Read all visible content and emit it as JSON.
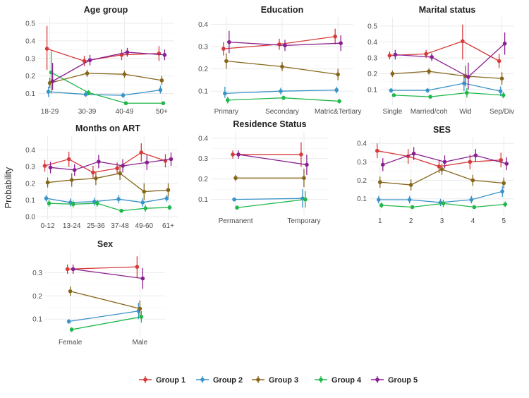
{
  "chart_data": {
    "type": "line",
    "y_axis_label": "Probability",
    "series_names": [
      "Group 1",
      "Group 2",
      "Group 3",
      "Group 4",
      "Group 5"
    ],
    "colors": [
      "#d63a3a",
      "#3a93c9",
      "#86661a",
      "#1fb84a",
      "#8a1f8f"
    ],
    "legend_position": "bottom",
    "panels": [
      {
        "title": "Age group",
        "categories": [
          "18-29",
          "30-39",
          "40-49",
          "50+"
        ],
        "ylim": [
          0.05,
          0.52
        ],
        "yticks": [
          0.1,
          0.2,
          0.3,
          0.4,
          0.5
        ],
        "ytick_labels": [
          "0.1",
          "0.2",
          "0.3",
          "0.4",
          "0.5"
        ],
        "series": [
          {
            "name": "Group 1",
            "values": [
              0.355,
              0.285,
              0.32,
              0.328
            ],
            "lower": [
              0.235,
              0.255,
              0.29,
              0.285
            ],
            "upper": [
              0.485,
              0.315,
              0.35,
              0.37
            ]
          },
          {
            "name": "Group 2",
            "values": [
              0.11,
              0.095,
              0.09,
              0.12
            ],
            "lower": [
              0.08,
              0.08,
              0.075,
              0.1
            ],
            "upper": [
              0.14,
              0.115,
              0.105,
              0.145
            ]
          },
          {
            "name": "Group 3",
            "values": [
              0.16,
              0.215,
              0.21,
              0.175
            ],
            "lower": [
              0.13,
              0.195,
              0.19,
              0.15
            ],
            "upper": [
              0.19,
              0.235,
              0.23,
              0.2
            ]
          },
          {
            "name": "Group 4",
            "values": [
              0.22,
              0.105,
              0.045,
              0.045
            ],
            "lower": [
              0.1,
              0.09,
              0.035,
              0.035
            ],
            "upper": [
              0.34,
              0.12,
              0.055,
              0.055
            ]
          },
          {
            "name": "Group 5",
            "values": [
              0.17,
              0.29,
              0.335,
              0.32
            ],
            "lower": [
              0.12,
              0.26,
              0.31,
              0.29
            ],
            "upper": [
              0.275,
              0.32,
              0.36,
              0.35
            ]
          }
        ]
      },
      {
        "title": "Education",
        "categories": [
          "Primary",
          "Secondary",
          "Matric&Tertiary"
        ],
        "ylim": [
          0.05,
          0.42
        ],
        "yticks": [
          0.1,
          0.2,
          0.3,
          0.4
        ],
        "ytick_labels": [
          "0.1",
          "0.2",
          "0.3",
          "0.4"
        ],
        "series": [
          {
            "name": "Group 1",
            "values": [
              0.29,
              0.31,
              0.345
            ],
            "lower": [
              0.26,
              0.285,
              0.31
            ],
            "upper": [
              0.32,
              0.335,
              0.38
            ]
          },
          {
            "name": "Group 2",
            "values": [
              0.09,
              0.1,
              0.105
            ],
            "lower": [
              0.07,
              0.085,
              0.09
            ],
            "upper": [
              0.12,
              0.115,
              0.12
            ]
          },
          {
            "name": "Group 3",
            "values": [
              0.235,
              0.21,
              0.175
            ],
            "lower": [
              0.2,
              0.19,
              0.15
            ],
            "upper": [
              0.27,
              0.23,
              0.2
            ]
          },
          {
            "name": "Group 4",
            "values": [
              0.06,
              0.07,
              0.055
            ],
            "lower": [
              0.045,
              0.06,
              0.045
            ],
            "upper": [
              0.075,
              0.08,
              0.065
            ]
          },
          {
            "name": "Group 5",
            "values": [
              0.32,
              0.305,
              0.315
            ],
            "lower": [
              0.27,
              0.28,
              0.28
            ],
            "upper": [
              0.37,
              0.33,
              0.35
            ]
          }
        ]
      },
      {
        "title": "Marital status",
        "categories": [
          "Single",
          "Married/coh",
          "Wid",
          "Sep/Div"
        ],
        "ylim": [
          0.02,
          0.54
        ],
        "yticks": [
          0.1,
          0.2,
          0.3,
          0.4,
          0.5
        ],
        "ytick_labels": [
          "0.1",
          "0.2",
          "0.3",
          "0.4",
          "0.5"
        ],
        "series": [
          {
            "name": "Group 1",
            "values": [
              0.315,
              0.325,
              0.405,
              0.28
            ],
            "lower": [
              0.29,
              0.3,
              0.29,
              0.235
            ],
            "upper": [
              0.34,
              0.35,
              0.51,
              0.325
            ]
          },
          {
            "name": "Group 2",
            "values": [
              0.095,
              0.095,
              0.14,
              0.09
            ],
            "lower": [
              0.08,
              0.08,
              0.09,
              0.06
            ],
            "upper": [
              0.11,
              0.11,
              0.19,
              0.12
            ]
          },
          {
            "name": "Group 3",
            "values": [
              0.2,
              0.215,
              0.185,
              0.17
            ],
            "lower": [
              0.18,
              0.195,
              0.12,
              0.13
            ],
            "upper": [
              0.22,
              0.235,
              0.25,
              0.21
            ]
          },
          {
            "name": "Group 4",
            "values": [
              0.065,
              0.055,
              0.08,
              0.065
            ],
            "lower": [
              0.055,
              0.045,
              0.05,
              0.045
            ],
            "upper": [
              0.075,
              0.065,
              0.11,
              0.085
            ]
          },
          {
            "name": "Group 5",
            "values": [
              0.32,
              0.305,
              0.18,
              0.39
            ],
            "lower": [
              0.29,
              0.28,
              0.1,
              0.32
            ],
            "upper": [
              0.35,
              0.33,
              0.27,
              0.46
            ]
          }
        ]
      },
      {
        "title": "Months on ART",
        "categories": [
          "0-12",
          "13-24",
          "25-36",
          "37-48",
          "49-60",
          "61+"
        ],
        "ylim": [
          0.0,
          0.47
        ],
        "yticks": [
          0.0,
          0.1,
          0.2,
          0.3,
          0.4
        ],
        "ytick_labels": [
          "0.0",
          "0.1",
          "0.2",
          "0.3",
          "0.4"
        ],
        "series": [
          {
            "name": "Group 1",
            "values": [
              0.305,
              0.345,
              0.265,
              0.29,
              0.385,
              0.335
            ],
            "lower": [
              0.27,
              0.3,
              0.225,
              0.255,
              0.33,
              0.295
            ],
            "upper": [
              0.34,
              0.39,
              0.305,
              0.325,
              0.44,
              0.375
            ]
          },
          {
            "name": "Group 2",
            "values": [
              0.11,
              0.085,
              0.09,
              0.105,
              0.085,
              0.11
            ],
            "lower": [
              0.09,
              0.06,
              0.065,
              0.08,
              0.06,
              0.09
            ],
            "upper": [
              0.13,
              0.11,
              0.115,
              0.13,
              0.11,
              0.13
            ]
          },
          {
            "name": "Group 3",
            "values": [
              0.205,
              0.22,
              0.23,
              0.26,
              0.15,
              0.16
            ],
            "lower": [
              0.175,
              0.18,
              0.19,
              0.22,
              0.1,
              0.12
            ],
            "upper": [
              0.235,
              0.26,
              0.27,
              0.3,
              0.2,
              0.2
            ]
          },
          {
            "name": "Group 4",
            "values": [
              0.08,
              0.075,
              0.08,
              0.035,
              0.05,
              0.055
            ],
            "lower": [
              0.06,
              0.055,
              0.06,
              0.025,
              0.03,
              0.04
            ],
            "upper": [
              0.1,
              0.095,
              0.1,
              0.045,
              0.07,
              0.07
            ]
          },
          {
            "name": "Group 5",
            "values": [
              0.295,
              0.28,
              0.33,
              0.305,
              0.325,
              0.345
            ],
            "lower": [
              0.26,
              0.245,
              0.29,
              0.265,
              0.28,
              0.305
            ],
            "upper": [
              0.33,
              0.315,
              0.37,
              0.345,
              0.37,
              0.385
            ]
          }
        ]
      },
      {
        "title": "Residence Status",
        "categories": [
          "Permanent",
          "Temporary"
        ],
        "ylim": [
          0.04,
          0.42
        ],
        "yticks": [
          0.1,
          0.2,
          0.3,
          0.4
        ],
        "ytick_labels": [
          "0.1",
          "0.2",
          "0.3",
          "0.4"
        ],
        "series": [
          {
            "name": "Group 1",
            "values": [
              0.32,
              0.32
            ],
            "lower": [
              0.3,
              0.26
            ],
            "upper": [
              0.34,
              0.38
            ]
          },
          {
            "name": "Group 2",
            "values": [
              0.1,
              0.105
            ],
            "lower": [
              0.09,
              0.06
            ],
            "upper": [
              0.11,
              0.15
            ]
          },
          {
            "name": "Group 3",
            "values": [
              0.205,
              0.205
            ],
            "lower": [
              0.19,
              0.16
            ],
            "upper": [
              0.22,
              0.25
            ]
          },
          {
            "name": "Group 4",
            "values": [
              0.06,
              0.1
            ],
            "lower": [
              0.05,
              0.06
            ],
            "upper": [
              0.07,
              0.14
            ]
          },
          {
            "name": "Group 5",
            "values": [
              0.32,
              0.27
            ],
            "lower": [
              0.3,
              0.22
            ],
            "upper": [
              0.34,
              0.32
            ]
          }
        ]
      },
      {
        "title": "SES",
        "categories": [
          "1",
          "2",
          "3",
          "4",
          "5"
        ],
        "ylim": [
          0.03,
          0.42
        ],
        "yticks": [
          0.1,
          0.2,
          0.3,
          0.4
        ],
        "ytick_labels": [
          "0.1",
          "0.2",
          "0.3",
          "0.4"
        ],
        "series": [
          {
            "name": "Group 1",
            "values": [
              0.36,
              0.33,
              0.275,
              0.3,
              0.31
            ],
            "lower": [
              0.32,
              0.29,
              0.24,
              0.26,
              0.27
            ],
            "upper": [
              0.4,
              0.37,
              0.31,
              0.34,
              0.35
            ]
          },
          {
            "name": "Group 2",
            "values": [
              0.095,
              0.095,
              0.08,
              0.095,
              0.14
            ],
            "lower": [
              0.075,
              0.075,
              0.06,
              0.075,
              0.11
            ],
            "upper": [
              0.115,
              0.115,
              0.1,
              0.115,
              0.17
            ]
          },
          {
            "name": "Group 3",
            "values": [
              0.19,
              0.175,
              0.26,
              0.2,
              0.185
            ],
            "lower": [
              0.16,
              0.145,
              0.23,
              0.17,
              0.155
            ],
            "upper": [
              0.22,
              0.205,
              0.29,
              0.23,
              0.215
            ]
          },
          {
            "name": "Group 4",
            "values": [
              0.065,
              0.055,
              0.075,
              0.055,
              0.07
            ],
            "lower": [
              0.05,
              0.045,
              0.055,
              0.045,
              0.055
            ],
            "upper": [
              0.08,
              0.065,
              0.095,
              0.065,
              0.085
            ]
          },
          {
            "name": "Group 5",
            "values": [
              0.285,
              0.345,
              0.3,
              0.335,
              0.29
            ],
            "lower": [
              0.25,
              0.31,
              0.265,
              0.3,
              0.255
            ],
            "upper": [
              0.32,
              0.38,
              0.335,
              0.37,
              0.325
            ]
          }
        ]
      },
      {
        "title": "Sex",
        "categories": [
          "Female",
          "Male"
        ],
        "ylim": [
          0.04,
          0.38
        ],
        "yticks": [
          0.1,
          0.2,
          0.3
        ],
        "ytick_labels": [
          "0.1",
          "0.2",
          "0.3"
        ],
        "series": [
          {
            "name": "Group 1",
            "values": [
              0.315,
              0.325
            ],
            "lower": [
              0.295,
              0.28
            ],
            "upper": [
              0.335,
              0.37
            ]
          },
          {
            "name": "Group 2",
            "values": [
              0.09,
              0.135
            ],
            "lower": [
              0.08,
              0.1
            ],
            "upper": [
              0.1,
              0.17
            ]
          },
          {
            "name": "Group 3",
            "values": [
              0.22,
              0.145
            ],
            "lower": [
              0.2,
              0.11
            ],
            "upper": [
              0.24,
              0.18
            ]
          },
          {
            "name": "Group 4",
            "values": [
              0.055,
              0.11
            ],
            "lower": [
              0.045,
              0.085
            ],
            "upper": [
              0.065,
              0.135
            ]
          },
          {
            "name": "Group 5",
            "values": [
              0.315,
              0.275
            ],
            "lower": [
              0.295,
              0.23
            ],
            "upper": [
              0.335,
              0.32
            ]
          }
        ]
      }
    ]
  }
}
